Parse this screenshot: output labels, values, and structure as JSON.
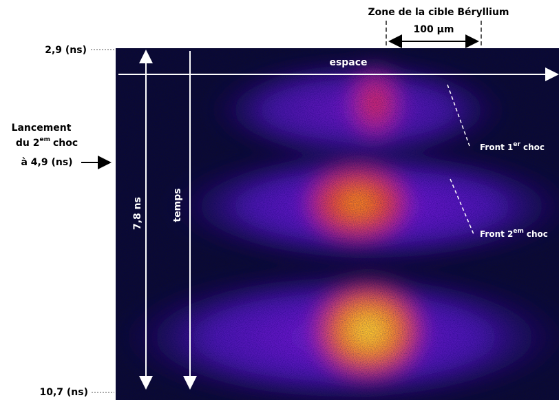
{
  "header": {
    "target_zone": "Zone de la cible Béryllium",
    "scale": "100 µm"
  },
  "time_axis": {
    "start": "2,9 (ns)",
    "end": "10,7 (ns)",
    "duration": "7,8 ns",
    "label": "temps"
  },
  "space_axis": {
    "label": "espace"
  },
  "launch": {
    "line1": "Lancement",
    "line2_base": "du 2",
    "line2_sup": "em",
    "line2_tail": "choc",
    "line3": "à 4,9 (ns)"
  },
  "front1": {
    "base": "Front 1",
    "sup": "er",
    "tail": "choc"
  },
  "front2": {
    "base": "Front 2",
    "sup": "em",
    "tail": "choc"
  }
}
